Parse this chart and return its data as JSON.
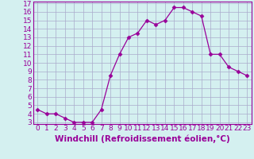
{
  "x": [
    0,
    1,
    2,
    3,
    4,
    5,
    6,
    7,
    8,
    9,
    10,
    11,
    12,
    13,
    14,
    15,
    16,
    17,
    18,
    19,
    20,
    21,
    22,
    23
  ],
  "y": [
    4.5,
    4.0,
    4.0,
    3.5,
    3.0,
    3.0,
    3.0,
    4.5,
    8.5,
    11.0,
    13.0,
    13.5,
    15.0,
    14.5,
    15.0,
    16.5,
    16.5,
    16.0,
    15.5,
    11.0,
    11.0,
    9.5,
    9.0,
    8.5
  ],
  "xlabel": "Windchill (Refroidissement éolien,°C)",
  "ylim": [
    3,
    17
  ],
  "xlim": [
    -0.5,
    23.5
  ],
  "yticks": [
    3,
    4,
    5,
    6,
    7,
    8,
    9,
    10,
    11,
    12,
    13,
    14,
    15,
    16,
    17
  ],
  "xticks": [
    0,
    1,
    2,
    3,
    4,
    5,
    6,
    7,
    8,
    9,
    10,
    11,
    12,
    13,
    14,
    15,
    16,
    17,
    18,
    19,
    20,
    21,
    22,
    23
  ],
  "line_color": "#990099",
  "marker": "D",
  "marker_size": 2.5,
  "bg_color": "#d4f0f0",
  "grid_color": "#aaaacc",
  "tick_label_fontsize": 6.5,
  "xlabel_fontsize": 7.5
}
